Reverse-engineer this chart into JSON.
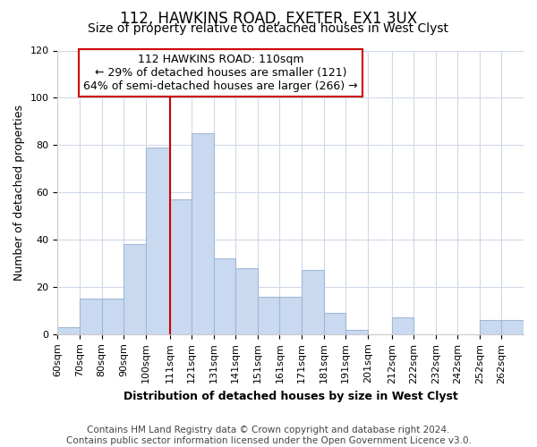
{
  "title": "112, HAWKINS ROAD, EXETER, EX1 3UX",
  "subtitle": "Size of property relative to detached houses in West Clyst",
  "xlabel": "Distribution of detached houses by size in West Clyst",
  "ylabel": "Number of detached properties",
  "footer_line1": "Contains HM Land Registry data © Crown copyright and database right 2024.",
  "footer_line2": "Contains public sector information licensed under the Open Government Licence v3.0.",
  "bin_labels": [
    "60sqm",
    "70sqm",
    "80sqm",
    "90sqm",
    "100sqm",
    "111sqm",
    "121sqm",
    "131sqm",
    "141sqm",
    "151sqm",
    "161sqm",
    "171sqm",
    "181sqm",
    "191sqm",
    "201sqm",
    "212sqm",
    "222sqm",
    "232sqm",
    "242sqm",
    "252sqm",
    "262sqm"
  ],
  "bin_edges": [
    60,
    70,
    80,
    90,
    100,
    111,
    121,
    131,
    141,
    151,
    161,
    171,
    181,
    191,
    201,
    212,
    222,
    232,
    242,
    252,
    262,
    272
  ],
  "counts": [
    3,
    15,
    15,
    38,
    79,
    57,
    85,
    32,
    28,
    16,
    16,
    27,
    9,
    2,
    0,
    7,
    0,
    0,
    0,
    6,
    6
  ],
  "bar_color": "#c9d9f0",
  "bar_edge_color": "#a0b8d8",
  "vline_x": 111,
  "vline_color": "#cc0000",
  "annotation_line1": "112 HAWKINS ROAD: 110sqm",
  "annotation_line2": "← 29% of detached houses are smaller (121)",
  "annotation_line3": "64% of semi-detached houses are larger (266) →",
  "annotation_box_color": "#cc0000",
  "annotation_fill_color": "#ffffff",
  "ylim": [
    0,
    120
  ],
  "yticks": [
    0,
    20,
    40,
    60,
    80,
    100,
    120
  ],
  "background_color": "#ffffff",
  "grid_color": "#d0d8e8",
  "title_fontsize": 12,
  "subtitle_fontsize": 10,
  "xlabel_fontsize": 9,
  "ylabel_fontsize": 9,
  "tick_fontsize": 8,
  "footer_fontsize": 7.5,
  "annotation_fontsize": 9
}
